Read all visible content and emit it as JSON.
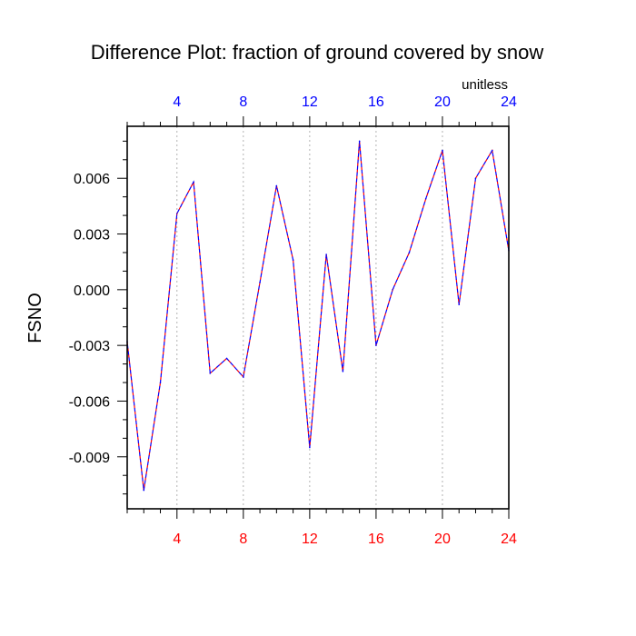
{
  "chart_data": {
    "type": "line",
    "title": "Difference Plot: fraction of ground covered by snow",
    "units": "unitless",
    "ylabel": "FSNO",
    "xlabel": "",
    "xlim": [
      1,
      24
    ],
    "ylim": [
      -0.0118,
      0.0088
    ],
    "bottom_xticks": [
      "4",
      "8",
      "12",
      "16",
      "20",
      "24"
    ],
    "top_xticks": [
      "4",
      "8",
      "12",
      "16",
      "20",
      "24"
    ],
    "yticks": [
      "0.006",
      "0.003",
      "0.000",
      "-0.003",
      "-0.006",
      "-0.009"
    ],
    "grid": "vertical dashed at major x ticks",
    "series": [
      {
        "x": [
          1,
          2,
          3,
          4,
          5,
          6,
          7,
          8,
          9,
          10,
          11,
          12,
          13,
          14,
          15,
          16,
          17,
          18,
          19,
          20,
          21,
          22,
          23,
          24
        ],
        "values": [
          -0.0028,
          -0.0108,
          -0.005,
          0.0041,
          0.0058,
          -0.0045,
          -0.0037,
          -0.0047,
          0.0004,
          0.0056,
          0.0016,
          -0.0085,
          0.0019,
          -0.0044,
          0.008,
          -0.003,
          0.0,
          0.002,
          0.0049,
          0.0075,
          -0.0008,
          0.006,
          0.0075,
          0.0021
        ],
        "colors": [
          "#ff0000",
          "#0000ff"
        ],
        "style": "dashed"
      }
    ],
    "colors": {
      "bottom_tick_labels": "#ff0000",
      "top_tick_labels": "#0000ff",
      "axes": "#000000",
      "grid": "#aaaaaa"
    }
  }
}
